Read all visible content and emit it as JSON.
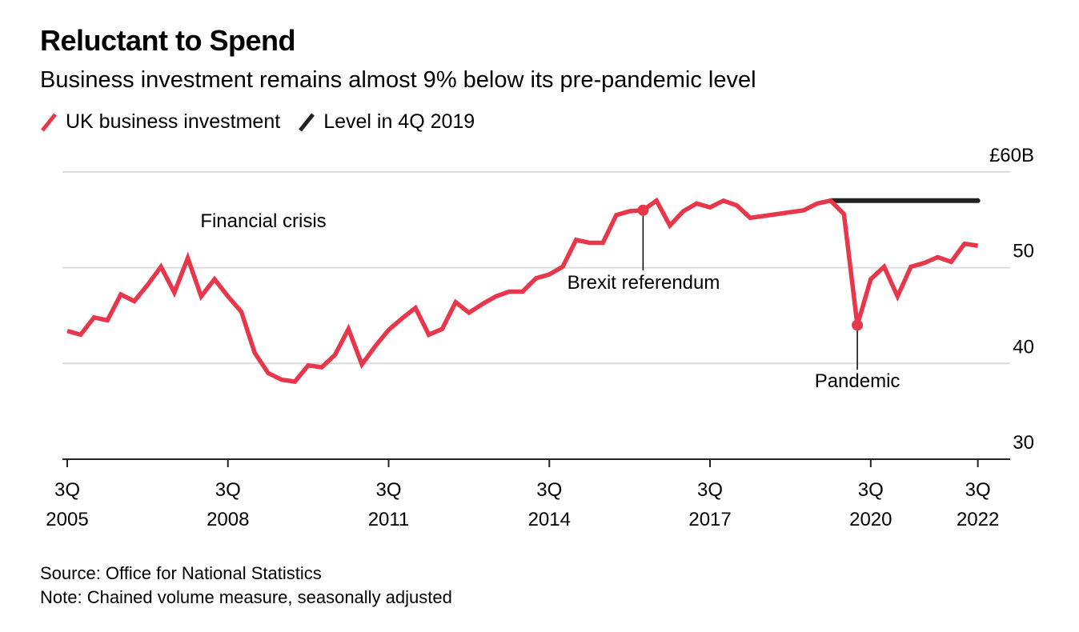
{
  "title": "Reluctant to Spend",
  "subtitle": "Business investment remains almost 9% below its pre-pandemic level",
  "legend": [
    {
      "label": "UK business investment",
      "color": "#e8364a",
      "icon": "diagonal-line-icon"
    },
    {
      "label": "Level in 4Q 2019",
      "color": "#222222",
      "icon": "diagonal-line-icon"
    }
  ],
  "footer": {
    "source": "Source: Office for National Statistics",
    "note": "Note: Chained volume measure, seasonally adjusted"
  },
  "chart_data": {
    "type": "line",
    "title": "Reluctant to Spend",
    "subtitle": "Business investment remains almost 9% below its pre-pandemic level",
    "xlabel": "",
    "ylabel": "",
    "y_unit_label": "£60B",
    "ylim": [
      30,
      60
    ],
    "yticks": [
      {
        "value": 60,
        "label": "£60B"
      },
      {
        "value": 50,
        "label": "50"
      },
      {
        "value": 40,
        "label": "40"
      },
      {
        "value": 30,
        "label": "30"
      }
    ],
    "grid": true,
    "y_axis_side": "right",
    "x_start": "3Q 2005",
    "x_end": "3Q 2022",
    "x_step": "quarter",
    "xticks": [
      {
        "index": 0,
        "line1": "3Q",
        "line2": "2005"
      },
      {
        "index": 12,
        "line1": "3Q",
        "line2": "2008"
      },
      {
        "index": 24,
        "line1": "3Q",
        "line2": "2011"
      },
      {
        "index": 36,
        "line1": "3Q",
        "line2": "2014"
      },
      {
        "index": 48,
        "line1": "3Q",
        "line2": "2017"
      },
      {
        "index": 60,
        "line1": "3Q",
        "line2": "2020"
      },
      {
        "index": 68,
        "line1": "3Q",
        "line2": "2022"
      }
    ],
    "series": [
      {
        "name": "UK business investment",
        "color": "#e8364a",
        "values": [
          43.4,
          43.0,
          44.8,
          44.5,
          47.2,
          46.5,
          48.2,
          50.1,
          47.4,
          51.0,
          47.0,
          48.8,
          47.0,
          45.4,
          41.1,
          39.0,
          38.3,
          38.1,
          39.8,
          39.6,
          40.9,
          43.6,
          39.9,
          41.8,
          43.5,
          44.7,
          45.8,
          43.0,
          43.6,
          46.4,
          45.3,
          46.2,
          47.0,
          47.5,
          47.5,
          48.9,
          49.3,
          50.1,
          52.9,
          52.6,
          52.6,
          55.5,
          55.9,
          56.0,
          57.0,
          54.4,
          55.9,
          56.7,
          56.3,
          57.0,
          56.5,
          55.2,
          55.4,
          55.6,
          55.8,
          56.0,
          56.7,
          57.0,
          55.6,
          44.0,
          48.8,
          50.1,
          47.0,
          50.1,
          50.5,
          51.1,
          50.6,
          52.5,
          52.3
        ]
      },
      {
        "name": "Level in 4Q 2019",
        "color": "#222222",
        "start_index": 57,
        "end_index": 68,
        "value": 57.0
      }
    ],
    "annotations": [
      {
        "label": "Financial crisis",
        "index": 10,
        "value": null,
        "marker": false
      },
      {
        "label": "Brexit referendum",
        "index": 43,
        "value": 56.0,
        "marker": true
      },
      {
        "label": "Pandemic",
        "index": 59,
        "value": 44.0,
        "marker": true
      }
    ],
    "legend_position": "top-left"
  }
}
